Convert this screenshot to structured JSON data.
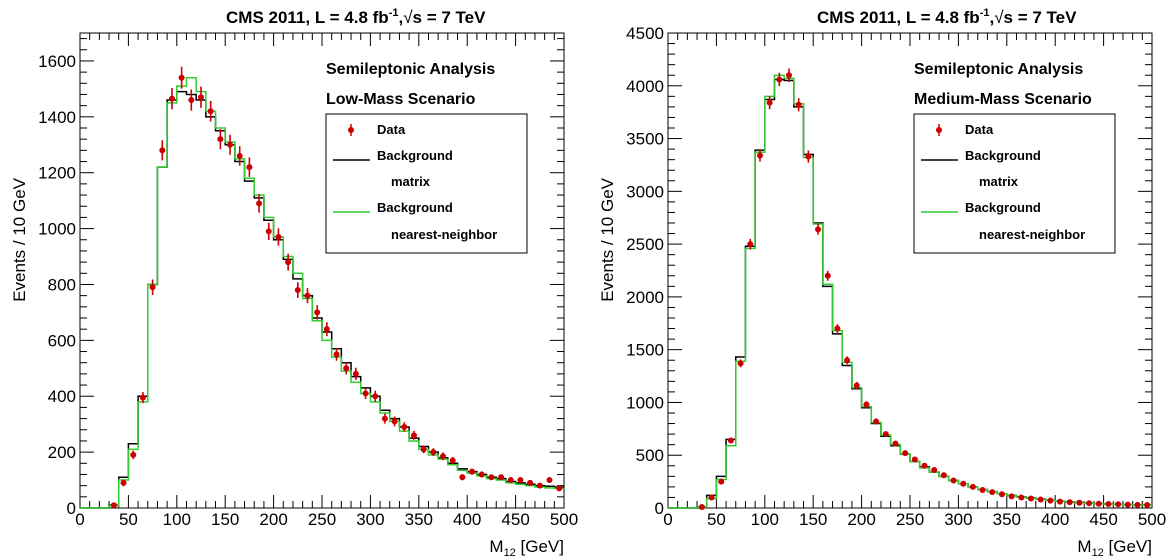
{
  "chart_data": [
    {
      "type": "line",
      "header_text": "CMS 2011, L = 4.8 fb",
      "header_sup": "-1",
      "header_sqrt_s": "s = 7 TeV",
      "analysis": "Semileptonic Analysis",
      "scenario": "Low-Mass Scenario",
      "ylabel": "Events / 10 GeV",
      "xlabel_main": "M",
      "xlabel_sub": "12",
      "xlabel_unit": " [GeV]",
      "xlim": [
        0,
        500
      ],
      "ylim": [
        0,
        1700
      ],
      "xticks": [
        0,
        50,
        100,
        150,
        200,
        250,
        300,
        350,
        400,
        450,
        500
      ],
      "yticks": [
        0,
        200,
        400,
        600,
        800,
        1000,
        1200,
        1400,
        1600
      ],
      "bin_width": 10,
      "bin_centers": [
        5,
        15,
        25,
        35,
        45,
        55,
        65,
        75,
        85,
        95,
        105,
        115,
        125,
        135,
        145,
        155,
        165,
        175,
        185,
        195,
        205,
        215,
        225,
        235,
        245,
        255,
        265,
        275,
        285,
        295,
        305,
        315,
        325,
        335,
        345,
        355,
        365,
        375,
        385,
        395,
        405,
        415,
        425,
        435,
        445,
        455,
        465,
        475,
        485,
        495
      ],
      "legend": [
        {
          "label": "Data",
          "kind": "marker",
          "color": "#cc0000"
        },
        {
          "label": "Background",
          "sublabel": "matrix",
          "kind": "line",
          "color": "#000000"
        },
        {
          "label": "Background",
          "sublabel": "nearest-neighbor",
          "kind": "line",
          "color": "#33cc33"
        }
      ],
      "series": [
        {
          "name": "Data",
          "values": [
            0,
            0,
            0,
            10,
            90,
            190,
            395,
            790,
            1280,
            1465,
            1540,
            1460,
            1470,
            1420,
            1320,
            1300,
            1260,
            1220,
            1090,
            990,
            970,
            880,
            780,
            760,
            700,
            640,
            550,
            500,
            480,
            410,
            400,
            320,
            310,
            290,
            260,
            210,
            200,
            185,
            170,
            110,
            130,
            120,
            110,
            110,
            100,
            100,
            90,
            80,
            100,
            70
          ],
          "errors": [
            0,
            0,
            0,
            5,
            12,
            15,
            20,
            28,
            36,
            38,
            39,
            38,
            38,
            37,
            36,
            36,
            35,
            35,
            33,
            31,
            31,
            30,
            28,
            27,
            26,
            25,
            23,
            22,
            22,
            20,
            20,
            18,
            18,
            17,
            16,
            14,
            14,
            14,
            13,
            11,
            11,
            11,
            10,
            10,
            10,
            10,
            10,
            9,
            10,
            8
          ]
        },
        {
          "name": "Background matrix",
          "values": [
            0,
            0,
            0,
            10,
            110,
            230,
            400,
            800,
            1220,
            1460,
            1490,
            1480,
            1460,
            1400,
            1350,
            1300,
            1240,
            1170,
            1110,
            1030,
            960,
            890,
            820,
            760,
            680,
            630,
            570,
            520,
            470,
            430,
            400,
            350,
            320,
            290,
            250,
            220,
            200,
            180,
            160,
            140,
            130,
            120,
            110,
            105,
            95,
            90,
            85,
            80,
            78,
            75
          ]
        },
        {
          "name": "Background nearest-neighbor",
          "values": [
            0,
            0,
            0,
            8,
            100,
            210,
            380,
            800,
            1220,
            1450,
            1510,
            1540,
            1490,
            1420,
            1360,
            1310,
            1250,
            1180,
            1120,
            1040,
            970,
            900,
            840,
            750,
            670,
            600,
            540,
            490,
            450,
            410,
            380,
            340,
            310,
            275,
            240,
            210,
            190,
            175,
            155,
            135,
            125,
            115,
            105,
            100,
            90,
            85,
            80,
            75,
            72,
            70
          ]
        }
      ],
      "legend_position": "top-right"
    },
    {
      "type": "line",
      "header_text": "CMS 2011, L = 4.8 fb",
      "header_sup": "-1",
      "header_sqrt_s": "s = 7 TeV",
      "analysis": "Semileptonic Analysis",
      "scenario": "Medium-Mass Scenario",
      "ylabel": "Events / 10 GeV",
      "xlabel_main": "M",
      "xlabel_sub": "12",
      "xlabel_unit": " [GeV]",
      "xlim": [
        0,
        500
      ],
      "ylim": [
        0,
        4500
      ],
      "xticks": [
        0,
        50,
        100,
        150,
        200,
        250,
        300,
        350,
        400,
        450,
        500
      ],
      "yticks": [
        0,
        500,
        1000,
        1500,
        2000,
        2500,
        3000,
        3500,
        4000,
        4500
      ],
      "bin_width": 10,
      "bin_centers": [
        5,
        15,
        25,
        35,
        45,
        55,
        65,
        75,
        85,
        95,
        105,
        115,
        125,
        135,
        145,
        155,
        165,
        175,
        185,
        195,
        205,
        215,
        225,
        235,
        245,
        255,
        265,
        275,
        285,
        295,
        305,
        315,
        325,
        335,
        345,
        355,
        365,
        375,
        385,
        395,
        405,
        415,
        425,
        435,
        445,
        455,
        465,
        475,
        485,
        495
      ],
      "legend": [
        {
          "label": "Data",
          "kind": "marker",
          "color": "#cc0000"
        },
        {
          "label": "Background",
          "sublabel": "matrix",
          "kind": "line",
          "color": "#000000"
        },
        {
          "label": "Background",
          "sublabel": "nearest-neighbor",
          "kind": "line",
          "color": "#33cc33"
        }
      ],
      "series": [
        {
          "name": "Data",
          "values": [
            0,
            0,
            0,
            10,
            100,
            250,
            640,
            1370,
            2500,
            3340,
            3840,
            4060,
            4100,
            3820,
            3330,
            2640,
            2200,
            1700,
            1400,
            1160,
            980,
            820,
            700,
            610,
            520,
            460,
            400,
            360,
            310,
            260,
            230,
            200,
            170,
            150,
            130,
            110,
            100,
            90,
            80,
            70,
            60,
            55,
            50,
            45,
            40,
            38,
            35,
            32,
            30,
            28
          ],
          "errors": [
            0,
            0,
            0,
            5,
            10,
            16,
            25,
            37,
            50,
            58,
            62,
            64,
            64,
            62,
            58,
            51,
            47,
            41,
            37,
            34,
            31,
            29,
            26,
            25,
            23,
            21,
            20,
            19,
            18,
            16,
            15,
            14,
            13,
            12,
            11,
            10,
            10,
            9,
            9,
            8,
            8,
            7,
            7,
            7,
            6,
            6,
            6,
            6,
            5,
            5
          ]
        },
        {
          "name": "Background matrix",
          "values": [
            0,
            0,
            0,
            10,
            120,
            300,
            650,
            1430,
            2480,
            3390,
            3870,
            4060,
            4050,
            3800,
            3350,
            2700,
            2100,
            1650,
            1350,
            1130,
            950,
            800,
            680,
            590,
            510,
            440,
            390,
            340,
            300,
            260,
            230,
            200,
            175,
            155,
            135,
            120,
            105,
            95,
            85,
            75,
            65,
            58,
            52,
            46,
            42,
            38,
            35,
            32,
            30,
            28
          ]
        },
        {
          "name": "Background nearest-neighbor",
          "values": [
            0,
            0,
            0,
            8,
            90,
            270,
            590,
            1390,
            2460,
            3370,
            3900,
            4100,
            4070,
            3830,
            3320,
            2690,
            2120,
            1680,
            1380,
            1140,
            960,
            810,
            690,
            600,
            510,
            440,
            380,
            340,
            300,
            260,
            230,
            200,
            175,
            155,
            135,
            118,
            103,
            93,
            83,
            73,
            64,
            57,
            51,
            45,
            41,
            37,
            34,
            31,
            29,
            27
          ]
        }
      ],
      "legend_position": "top-right"
    }
  ]
}
